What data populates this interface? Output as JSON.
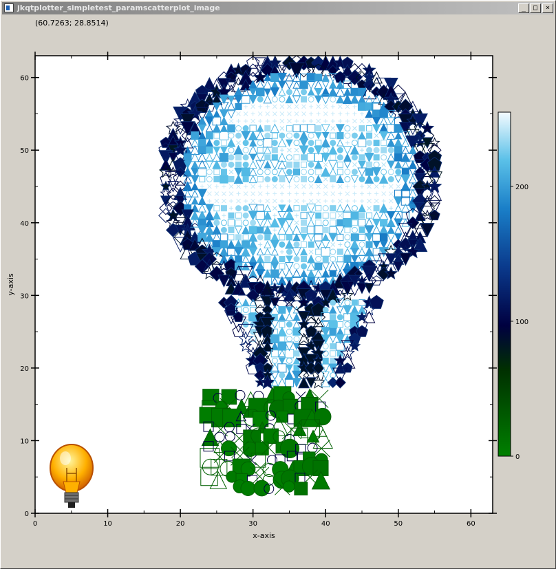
{
  "window": {
    "title": "jkqtplotter_simpletest_paramscatterplot_image",
    "minimize_glyph": "_",
    "maximize_glyph": "□",
    "close_glyph": "×"
  },
  "coord_readout": "(60.7263; 28.8514)",
  "chart_data": {
    "type": "scatter",
    "xlabel": "x-axis",
    "ylabel": "y-axis",
    "xlim": [
      0,
      63
    ],
    "ylim": [
      0,
      63
    ],
    "x_ticks": [
      0,
      10,
      20,
      30,
      40,
      50,
      60
    ],
    "y_ticks": [
      0,
      10,
      20,
      30,
      40,
      50,
      60
    ],
    "grid": false,
    "colorbar": {
      "range": [
        0,
        255
      ],
      "ticks": [
        0,
        100,
        200
      ],
      "colors": [
        "#008000",
        "#003000",
        "#000040",
        "#0a3a8c",
        "#1a7fc8",
        "#5ac0e8",
        "#f4fbff"
      ]
    },
    "description_marker_shapes": [
      "plus",
      "cross",
      "circle",
      "square",
      "triangle",
      "down-triangle",
      "diamond",
      "pentagon",
      "star"
    ],
    "bulb_rings": {
      "outer_color_value": 90,
      "inner_color_value": 230
    },
    "base_color": "#00b400"
  }
}
